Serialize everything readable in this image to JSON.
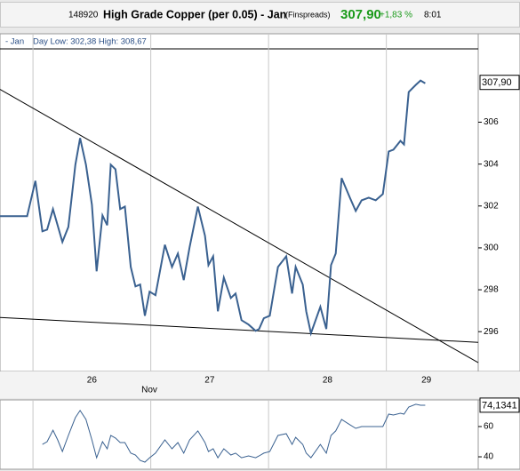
{
  "header": {
    "id": "148920",
    "title": "High Grade Copper (per 0.05) - Jan",
    "source": "(Finspreads)",
    "price": "307,90",
    "change": "+1,83 %",
    "time": "8:01"
  },
  "chart_data": [
    {
      "type": "line",
      "subtitle": "- Jan",
      "annotation": "Day Low: 302,38 High: 308,67",
      "xlabel": "Nov",
      "xlim": [
        25.72,
        29.78
      ],
      "xgrid": [
        26,
        27,
        28,
        29
      ],
      "xticks": [
        {
          "value": 26.5,
          "label": "26"
        },
        {
          "value": 27.5,
          "label": "27"
        },
        {
          "value": 28.5,
          "label": "28"
        },
        {
          "value": 29.34,
          "label": "29"
        }
      ],
      "ylim": [
        294.1,
        309.5
      ],
      "yticks": [
        296,
        298,
        300,
        302,
        304,
        306
      ],
      "last": {
        "value": 307.9,
        "label": "307,90"
      },
      "x": [
        25.72,
        25.95,
        26.02,
        26.08,
        26.12,
        26.17,
        26.25,
        26.3,
        26.36,
        26.4,
        26.45,
        26.5,
        26.54,
        26.59,
        26.63,
        26.66,
        26.7,
        26.74,
        26.78,
        26.83,
        26.87,
        26.91,
        26.95,
        26.99,
        27.04,
        27.12,
        27.18,
        27.23,
        27.28,
        27.33,
        27.4,
        27.46,
        27.49,
        27.53,
        27.57,
        27.62,
        27.68,
        27.72,
        27.77,
        27.83,
        27.89,
        27.92,
        27.96,
        28.01,
        28.08,
        28.15,
        28.2,
        28.23,
        28.29,
        28.32,
        28.36,
        28.44,
        28.49,
        28.53,
        28.57,
        28.62,
        28.69,
        28.74,
        28.79,
        28.85,
        28.91,
        28.97,
        29.02,
        29.06,
        29.12,
        29.15,
        29.19,
        29.25,
        29.29,
        29.33
      ],
      "series": [
        {
          "color": "#3a6190",
          "values": [
            301.51,
            301.51,
            303.2,
            300.79,
            300.87,
            301.85,
            300.28,
            301.0,
            303.97,
            305.24,
            303.97,
            302.06,
            298.88,
            301.55,
            301.08,
            303.97,
            303.75,
            301.85,
            301.97,
            299.09,
            298.16,
            298.25,
            296.76,
            297.91,
            297.74,
            300.15,
            299.09,
            299.73,
            298.46,
            300.03,
            301.97,
            300.58,
            299.18,
            299.6,
            296.97,
            298.58,
            297.61,
            297.82,
            296.55,
            296.34,
            296.04,
            296.13,
            296.64,
            296.76,
            299.09,
            299.6,
            297.82,
            299.09,
            298.25,
            296.97,
            295.92,
            297.19,
            296.13,
            299.18,
            299.73,
            303.33,
            302.4,
            301.76,
            302.27,
            302.4,
            302.27,
            302.57,
            304.6,
            304.69,
            305.11,
            304.94,
            307.44,
            307.78,
            307.99,
            307.86
          ]
        }
      ],
      "trendlines": [
        {
          "color": "#000000",
          "x": [
            25.72,
            29.78
          ],
          "values": [
            307.57,
            294.52
          ]
        },
        {
          "color": "#000000",
          "x": [
            25.72,
            29.78
          ],
          "values": [
            296.68,
            295.49
          ]
        }
      ]
    },
    {
      "type": "line",
      "xlim": [
        25.72,
        29.78
      ],
      "xgrid": [
        26,
        27,
        28,
        29
      ],
      "ylim": [
        31.8,
        77.6
      ],
      "yticks": [
        40,
        60
      ],
      "last": {
        "value": 74.1341,
        "label": "74,1341"
      },
      "x": [
        26.08,
        26.12,
        26.17,
        26.21,
        26.25,
        26.3,
        26.36,
        26.4,
        26.45,
        26.5,
        26.54,
        26.59,
        26.63,
        26.66,
        26.7,
        26.74,
        26.78,
        26.83,
        26.87,
        26.91,
        26.95,
        26.99,
        27.04,
        27.12,
        27.18,
        27.23,
        27.28,
        27.33,
        27.4,
        27.46,
        27.49,
        27.53,
        27.57,
        27.62,
        27.68,
        27.72,
        27.77,
        27.83,
        27.89,
        27.92,
        27.96,
        28.01,
        28.08,
        28.15,
        28.2,
        28.23,
        28.29,
        28.32,
        28.36,
        28.44,
        28.49,
        28.53,
        28.57,
        28.62,
        28.69,
        28.74,
        28.79,
        28.85,
        28.91,
        28.97,
        29.02,
        29.06,
        29.12,
        29.15,
        29.19,
        29.25,
        29.29,
        29.33
      ],
      "series": [
        {
          "color": "#3a6190",
          "values": [
            48.2,
            50.0,
            57.6,
            51.2,
            43.5,
            54.1,
            65.9,
            70.6,
            64.7,
            51.2,
            39.4,
            50.0,
            45.3,
            54.1,
            52.4,
            49.4,
            49.4,
            42.4,
            41.2,
            37.6,
            36.5,
            39.4,
            42.4,
            51.2,
            45.3,
            49.4,
            42.4,
            51.2,
            57.1,
            49.4,
            43.5,
            45.3,
            39.4,
            45.3,
            41.2,
            42.4,
            39.4,
            40.6,
            39.4,
            40.6,
            42.4,
            43.5,
            54.1,
            55.3,
            48.2,
            52.9,
            48.2,
            42.4,
            39.4,
            48.2,
            42.4,
            54.1,
            57.1,
            64.7,
            61.2,
            58.8,
            60,
            60,
            60,
            60,
            68.2,
            67.6,
            68.8,
            68.2,
            72.9,
            74.7,
            74.1,
            74.1
          ]
        }
      ]
    }
  ]
}
